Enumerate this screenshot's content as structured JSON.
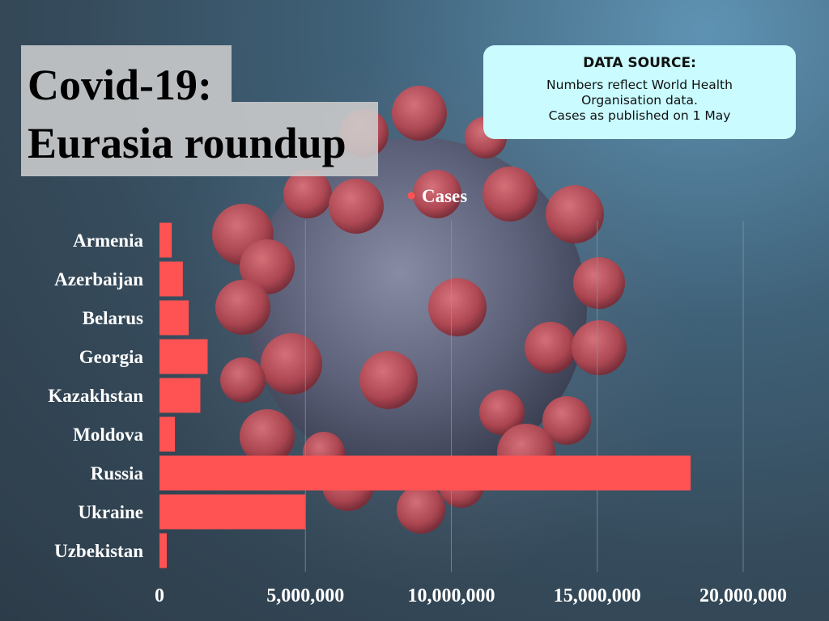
{
  "title": {
    "line1": "Covid-19:",
    "line2": "Eurasia roundup"
  },
  "source": {
    "heading": "DATA SOURCE:",
    "lines": [
      "Numbers reflect World Health",
      "Organisation data.",
      "Cases as published on 1 May"
    ]
  },
  "colors": {
    "bar": "#ff5252",
    "source_bg": "#c9fbff",
    "grid": "#8a97a3"
  },
  "chart_data": {
    "type": "bar",
    "orientation": "horizontal",
    "categories": [
      "Armenia",
      "Azerbaijan",
      "Belarus",
      "Georgia",
      "Kazakhstan",
      "Moldova",
      "Russia",
      "Ukraine",
      "Uzbekistan"
    ],
    "series": [
      {
        "name": "Cases",
        "values": [
          420000,
          800000,
          1000000,
          1650000,
          1400000,
          530000,
          18200000,
          5000000,
          250000
        ]
      }
    ],
    "xlim": [
      0,
      20000000
    ],
    "xticks": [
      0,
      5000000,
      10000000,
      15000000,
      20000000
    ],
    "xtick_labels": [
      "0",
      "5,000,000",
      "10,000,000",
      "15,000,000",
      "20,000,000"
    ],
    "grid": true,
    "legend_position": "top"
  }
}
